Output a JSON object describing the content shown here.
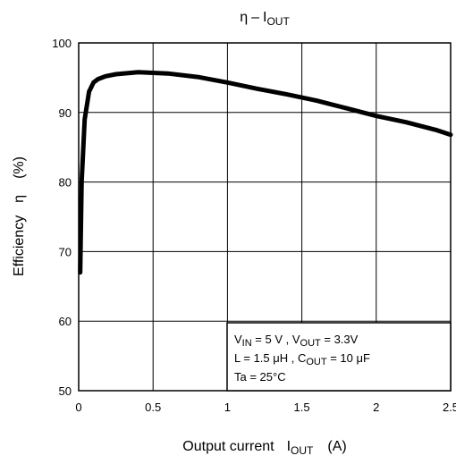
{
  "chart_data": {
    "type": "line",
    "title": {
      "symbol": "η",
      "dash": "–",
      "var": "I",
      "sub": "OUT"
    },
    "xlabel": {
      "text": "Output current",
      "var": "I",
      "sub": "OUT",
      "unit": "(A)"
    },
    "ylabel": {
      "text": "Efficiency",
      "symbol": "η",
      "unit": "(%)"
    },
    "xlim": [
      0,
      2.5
    ],
    "ylim": [
      50,
      100
    ],
    "xticks": [
      0,
      0.5,
      1,
      1.5,
      2,
      2.5
    ],
    "xtick_labels": [
      "0",
      "0.5",
      "1",
      "1.5",
      "2",
      "2.5"
    ],
    "yticks": [
      50,
      60,
      70,
      80,
      90,
      100
    ],
    "ytick_labels": [
      "50",
      "60",
      "70",
      "80",
      "90",
      "100"
    ],
    "grid": true,
    "series": [
      {
        "x": [
          0.01,
          0.02,
          0.04,
          0.07,
          0.1,
          0.13,
          0.18,
          0.25,
          0.4,
          0.6,
          0.8,
          1.0,
          1.2,
          1.4,
          1.6,
          1.8,
          2.0,
          2.2,
          2.4,
          2.5
        ],
        "y": [
          67,
          80,
          89,
          93,
          94.3,
          94.8,
          95.2,
          95.5,
          95.8,
          95.6,
          95.1,
          94.3,
          93.4,
          92.6,
          91.7,
          90.6,
          89.5,
          88.6,
          87.5,
          86.8
        ]
      }
    ],
    "conditions": [
      {
        "segments": [
          {
            "t": "V"
          },
          {
            "t": "IN",
            "sub": true
          },
          {
            "t": " = 5 V , V"
          },
          {
            "t": "OUT",
            "sub": true
          },
          {
            "t": " = 3.3V"
          }
        ]
      },
      {
        "segments": [
          {
            "t": "L = 1.5 μH , C"
          },
          {
            "t": "OUT",
            "sub": true
          },
          {
            "t": " = 10 μF"
          }
        ]
      },
      {
        "segments": [
          {
            "t": "Ta = 25°C"
          }
        ]
      }
    ],
    "colors": {
      "line": "#000000",
      "grid": "#000000",
      "background": "#ffffff"
    }
  }
}
